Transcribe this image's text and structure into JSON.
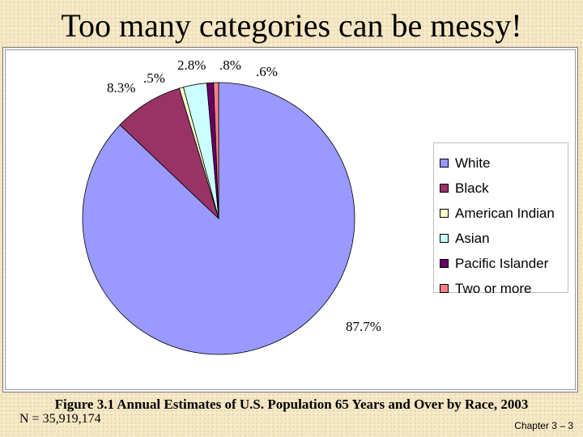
{
  "slide": {
    "title": "Too many categories can be messy!",
    "n_label": "N = 35,919,174",
    "caption": "Figure 3.1 Annual Estimates of U.S. Population 65 Years and Over by Race, 2003",
    "footer": "Chapter 3 – 3"
  },
  "chart_data": {
    "type": "pie",
    "title": "",
    "legend_position": "right",
    "slices": [
      {
        "name": "White",
        "value": 87.7,
        "label": "87.7%",
        "color": "#9999ff"
      },
      {
        "name": "Black",
        "value": 8.3,
        "label": "8.3%",
        "color": "#993366"
      },
      {
        "name": "American Indian",
        "value": 0.5,
        "label": ".5%",
        "color": "#ffffcc"
      },
      {
        "name": "Asian",
        "value": 2.8,
        "label": "2.8%",
        "color": "#ccffff"
      },
      {
        "name": "Pacific Islander",
        "value": 0.8,
        "label": ".8%",
        "color": "#660066"
      },
      {
        "name": "Two or more",
        "value": 0.6,
        "label": ".6%",
        "color": "#ff8080"
      }
    ]
  }
}
